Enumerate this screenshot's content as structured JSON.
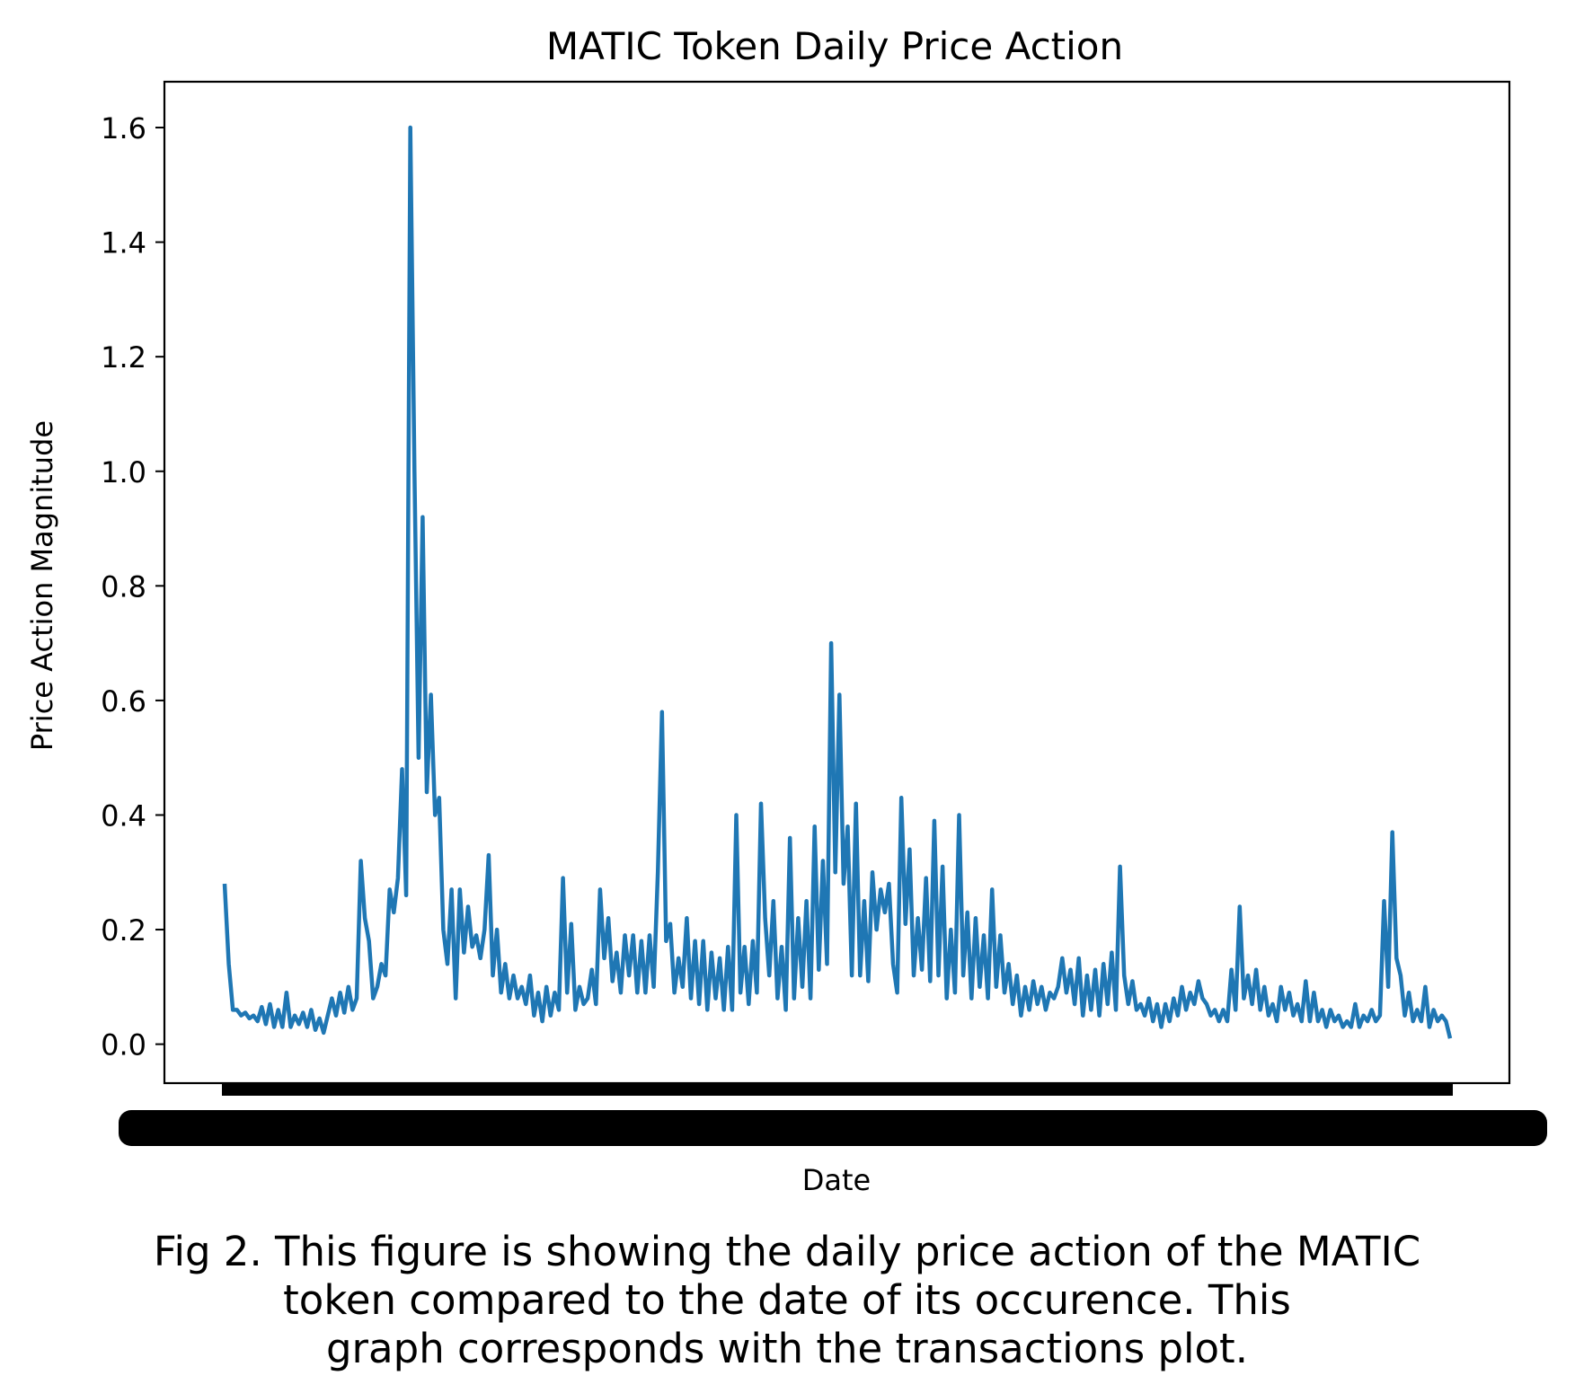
{
  "chart_data": {
    "type": "line",
    "title": "MATIC Token Daily Price Action",
    "xlabel": "Date",
    "ylabel": "Price Action Magnitude",
    "ylim": [
      -0.068,
      1.68
    ],
    "yticks": [
      0.0,
      0.2,
      0.4,
      0.6,
      0.8,
      1.0,
      1.2,
      1.4,
      1.6
    ],
    "ytick_labels": [
      "0.0",
      "0.2",
      "0.4",
      "0.6",
      "0.8",
      "1.0",
      "1.2",
      "1.4",
      "1.6"
    ],
    "x_tick_labels_note": "overlapping date labels (illegible)",
    "grid": false,
    "legend": "none",
    "series": [
      {
        "color": "#1f77b4",
        "values": [
          0.28,
          0.14,
          0.06,
          0.06,
          0.05,
          0.055,
          0.045,
          0.05,
          0.04,
          0.065,
          0.035,
          0.07,
          0.03,
          0.06,
          0.03,
          0.09,
          0.03,
          0.05,
          0.035,
          0.055,
          0.03,
          0.06,
          0.025,
          0.045,
          0.02,
          0.05,
          0.08,
          0.05,
          0.09,
          0.055,
          0.1,
          0.06,
          0.08,
          0.32,
          0.22,
          0.18,
          0.08,
          0.1,
          0.14,
          0.12,
          0.27,
          0.23,
          0.29,
          0.48,
          0.26,
          1.6,
          1.0,
          0.5,
          0.92,
          0.44,
          0.61,
          0.4,
          0.43,
          0.2,
          0.14,
          0.27,
          0.08,
          0.27,
          0.16,
          0.24,
          0.17,
          0.19,
          0.15,
          0.2,
          0.33,
          0.12,
          0.2,
          0.09,
          0.14,
          0.08,
          0.12,
          0.08,
          0.1,
          0.07,
          0.12,
          0.05,
          0.09,
          0.04,
          0.1,
          0.05,
          0.09,
          0.06,
          0.29,
          0.09,
          0.21,
          0.06,
          0.1,
          0.07,
          0.08,
          0.13,
          0.07,
          0.27,
          0.15,
          0.22,
          0.11,
          0.16,
          0.09,
          0.19,
          0.12,
          0.19,
          0.09,
          0.18,
          0.09,
          0.19,
          0.1,
          0.3,
          0.58,
          0.18,
          0.21,
          0.09,
          0.15,
          0.1,
          0.22,
          0.08,
          0.18,
          0.07,
          0.18,
          0.06,
          0.16,
          0.08,
          0.15,
          0.06,
          0.17,
          0.06,
          0.4,
          0.09,
          0.17,
          0.07,
          0.18,
          0.09,
          0.42,
          0.22,
          0.12,
          0.25,
          0.08,
          0.17,
          0.06,
          0.36,
          0.08,
          0.22,
          0.1,
          0.25,
          0.08,
          0.38,
          0.13,
          0.32,
          0.14,
          0.7,
          0.3,
          0.61,
          0.28,
          0.38,
          0.12,
          0.42,
          0.12,
          0.25,
          0.11,
          0.3,
          0.2,
          0.27,
          0.23,
          0.28,
          0.14,
          0.09,
          0.43,
          0.21,
          0.34,
          0.12,
          0.22,
          0.13,
          0.29,
          0.11,
          0.39,
          0.12,
          0.31,
          0.08,
          0.2,
          0.09,
          0.4,
          0.12,
          0.23,
          0.08,
          0.22,
          0.1,
          0.19,
          0.08,
          0.27,
          0.1,
          0.19,
          0.09,
          0.14,
          0.07,
          0.12,
          0.05,
          0.1,
          0.06,
          0.11,
          0.07,
          0.1,
          0.06,
          0.09,
          0.08,
          0.1,
          0.15,
          0.09,
          0.13,
          0.07,
          0.15,
          0.05,
          0.12,
          0.06,
          0.13,
          0.05,
          0.14,
          0.07,
          0.16,
          0.06,
          0.31,
          0.12,
          0.07,
          0.11,
          0.06,
          0.07,
          0.05,
          0.08,
          0.04,
          0.07,
          0.03,
          0.07,
          0.04,
          0.08,
          0.05,
          0.1,
          0.06,
          0.09,
          0.07,
          0.11,
          0.08,
          0.07,
          0.05,
          0.06,
          0.04,
          0.06,
          0.04,
          0.13,
          0.06,
          0.24,
          0.08,
          0.12,
          0.07,
          0.13,
          0.06,
          0.1,
          0.05,
          0.07,
          0.04,
          0.1,
          0.06,
          0.09,
          0.05,
          0.07,
          0.04,
          0.11,
          0.04,
          0.09,
          0.04,
          0.06,
          0.03,
          0.06,
          0.04,
          0.05,
          0.03,
          0.04,
          0.03,
          0.07,
          0.03,
          0.05,
          0.04,
          0.06,
          0.04,
          0.05,
          0.25,
          0.1,
          0.37,
          0.15,
          0.12,
          0.05,
          0.09,
          0.04,
          0.06,
          0.04,
          0.1,
          0.03,
          0.06,
          0.04,
          0.05,
          0.04,
          0.01
        ]
      }
    ]
  },
  "caption": {
    "lines": [
      "Fig 2. This figure is showing the daily price action of the MATIC",
      "token compared to the date of its occurence. This",
      "graph corresponds with the transactions plot."
    ]
  }
}
